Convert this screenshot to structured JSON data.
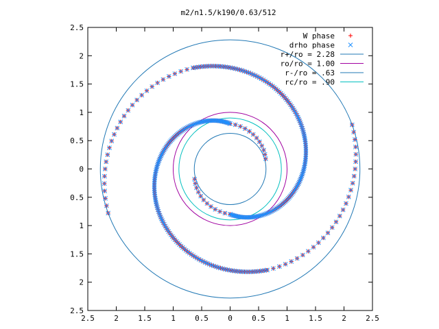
{
  "chart_data": {
    "type": "scatter",
    "title": "m2/n1.5/k190/0.63/512",
    "xlim": [
      -2.5,
      2.5
    ],
    "ylim": [
      -2.5,
      2.5
    ],
    "x_ticks": [
      -2.5,
      -2,
      -1.5,
      -1,
      -0.5,
      0,
      0.5,
      1,
      1.5,
      2,
      2.5
    ],
    "y_ticks": [
      -2.5,
      -2,
      -1.5,
      -1,
      -0.5,
      0,
      0.5,
      1,
      1.5,
      2,
      2.5
    ],
    "x_tick_labels": [
      "2.5",
      "2",
      "1.5",
      "1",
      "0.5",
      "0",
      "0.5",
      "1",
      "1.5",
      "2",
      "2.5"
    ],
    "y_tick_labels": [
      "2.5",
      "2",
      "1.5",
      "1",
      "0.5",
      "0",
      "0.5",
      "1",
      "1.5",
      "2",
      "2.5"
    ],
    "legend_position": "top-right",
    "grid": false,
    "series": [
      {
        "name": "W phase",
        "kind": "points",
        "marker": "plus",
        "color": "#ff0000",
        "arms": [
          {
            "theta_start_deg": 196,
            "theta_end_deg": 270,
            "r_start": 0.65,
            "r_end": 0.8,
            "count": 12
          },
          {
            "theta_start_deg": 270,
            "theta_end_deg": 470,
            "r_start": 0.8,
            "r_end": 1.9,
            "count": 150
          },
          {
            "theta_start_deg": 470,
            "theta_end_deg": 560,
            "r_start": 1.9,
            "r_end": 2.28,
            "count": 28
          },
          {
            "theta_start_deg": 16,
            "theta_end_deg": 90,
            "r_start": 0.65,
            "r_end": 0.8,
            "count": 12
          },
          {
            "theta_start_deg": 90,
            "theta_end_deg": 290,
            "r_start": 0.8,
            "r_end": 1.9,
            "count": 150
          },
          {
            "theta_start_deg": 290,
            "theta_end_deg": 380,
            "r_start": 1.9,
            "r_end": 2.28,
            "count": 28
          }
        ]
      },
      {
        "name": "drho phase",
        "kind": "points",
        "marker": "cross",
        "color": "#1e90ff",
        "arms": [
          {
            "theta_start_deg": 196,
            "theta_end_deg": 270,
            "r_start": 0.65,
            "r_end": 0.8,
            "count": 12
          },
          {
            "theta_start_deg": 270,
            "theta_end_deg": 470,
            "r_start": 0.8,
            "r_end": 1.9,
            "count": 150
          },
          {
            "theta_start_deg": 470,
            "theta_end_deg": 560,
            "r_start": 1.9,
            "r_end": 2.28,
            "count": 28
          },
          {
            "theta_start_deg": 16,
            "theta_end_deg": 90,
            "r_start": 0.65,
            "r_end": 0.8,
            "count": 12
          },
          {
            "theta_start_deg": 90,
            "theta_end_deg": 290,
            "r_start": 0.8,
            "r_end": 1.9,
            "count": 150
          },
          {
            "theta_start_deg": 290,
            "theta_end_deg": 380,
            "r_start": 1.9,
            "r_end": 2.28,
            "count": 28
          }
        ]
      },
      {
        "name": "r+/ro = 2.28",
        "kind": "circle",
        "radius": 2.28,
        "color": "#1f77b4"
      },
      {
        "name": "ro/ro = 1.00",
        "kind": "circle",
        "radius": 1.0,
        "color": "#a000a0"
      },
      {
        "name": "r-/ro = .63",
        "kind": "circle",
        "radius": 0.63,
        "color": "#1f77b4"
      },
      {
        "name": "rc/ro = .90",
        "kind": "circle",
        "radius": 0.9,
        "color": "#00bfbf"
      }
    ]
  }
}
